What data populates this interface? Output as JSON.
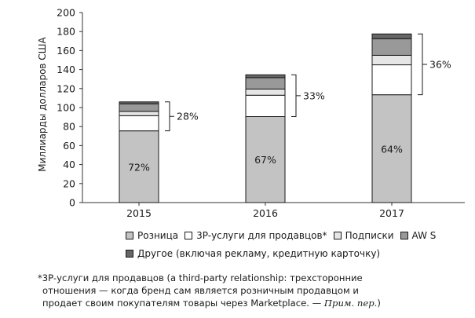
{
  "chart_data": {
    "type": "bar",
    "stacked": true,
    "categories": [
      "2015",
      "2016",
      "2017"
    ],
    "ylabel": "Миллиарды долларов США",
    "xlabel": "",
    "ylim": [
      0,
      200
    ],
    "yticks": [
      0,
      20,
      40,
      60,
      80,
      100,
      120,
      140,
      160,
      180,
      200
    ],
    "ytick_labels": [
      "0",
      "20",
      "40",
      "60",
      "80",
      "100",
      "120",
      "140",
      "160",
      "180",
      "200"
    ],
    "grid": false,
    "series": [
      {
        "name": "Розница",
        "color": "#c3c3c3",
        "values": [
          75.5,
          90.5,
          113.5
        ]
      },
      {
        "name": "3P-услуги для продавцов*",
        "color": "#ffffff",
        "values": [
          16,
          22.5,
          31.5
        ]
      },
      {
        "name": "Подписки",
        "color": "#e6e6e6",
        "values": [
          4.5,
          6.5,
          10
        ]
      },
      {
        "name": "AW S",
        "color": "#999999",
        "values": [
          8,
          12,
          17.5
        ]
      },
      {
        "name": "Другое (включая рекламу, кредитную карточку)",
        "color": "#666666",
        "values": [
          2,
          3,
          5
        ]
      }
    ],
    "bar_labels": [
      "72%",
      "67%",
      "64%"
    ],
    "brace_labels": [
      "28%",
      "33%",
      "36%"
    ]
  },
  "legend": {
    "row1": [
      "Розница",
      "3P-услуги для продавцов*",
      "Подписки",
      "AW S"
    ],
    "row2": [
      "Другое (включая рекламу, кредитную карточку)"
    ]
  },
  "footnote": {
    "line1": "*3P-услуги для продавцов (a third-party relationship: трехсторонние",
    "line2": "отношения — когда бренд сам является розничным продавцом и",
    "line3": "продает своим покупателям товары через Marketplace. —",
    "line3_note": "Прим. пер."
  }
}
